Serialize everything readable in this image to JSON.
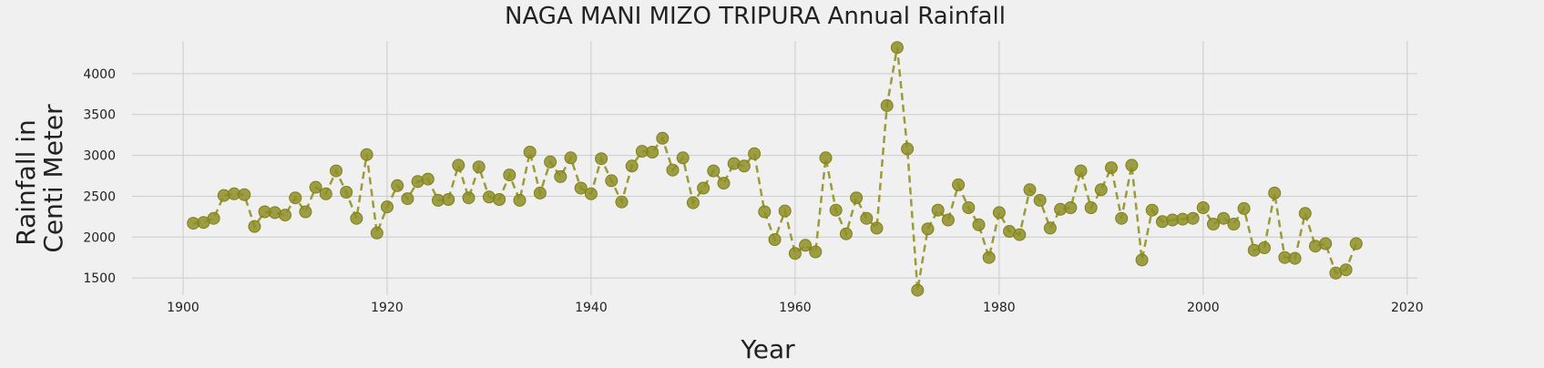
{
  "chart_data": {
    "type": "line",
    "title": "NAGA MANI MIZO TRIPURA Annual Rainfall",
    "xlabel": "Year",
    "ylabel_lines": [
      "Rainfall in",
      "Centi Meter"
    ],
    "xlim": [
      1895,
      2021
    ],
    "ylim": [
      1290,
      4400
    ],
    "x_ticks": [
      1900,
      1920,
      1940,
      1960,
      1980,
      2000,
      2020
    ],
    "y_ticks": [
      1500,
      2000,
      2500,
      3000,
      3500,
      4000
    ],
    "grid": true,
    "series_color": "#8e8e25",
    "x": [
      1901,
      1902,
      1903,
      1904,
      1905,
      1906,
      1907,
      1908,
      1909,
      1910,
      1911,
      1912,
      1913,
      1914,
      1915,
      1916,
      1917,
      1918,
      1919,
      1920,
      1921,
      1922,
      1923,
      1924,
      1925,
      1926,
      1927,
      1928,
      1929,
      1930,
      1931,
      1932,
      1933,
      1934,
      1935,
      1936,
      1937,
      1938,
      1939,
      1940,
      1941,
      1942,
      1943,
      1944,
      1945,
      1946,
      1947,
      1948,
      1949,
      1950,
      1951,
      1952,
      1953,
      1954,
      1955,
      1956,
      1957,
      1958,
      1959,
      1960,
      1961,
      1962,
      1963,
      1964,
      1965,
      1966,
      1967,
      1968,
      1969,
      1970,
      1971,
      1972,
      1973,
      1974,
      1975,
      1976,
      1977,
      1978,
      1979,
      1980,
      1981,
      1982,
      1983,
      1984,
      1985,
      1986,
      1987,
      1988,
      1989,
      1990,
      1991,
      1992,
      1993,
      1994,
      1995,
      1996,
      1997,
      1998,
      1999,
      2000,
      2001,
      2002,
      2003,
      2004,
      2005,
      2006,
      2007,
      2008,
      2009,
      2010,
      2011,
      2012,
      2013,
      2014,
      2015
    ],
    "y": [
      2170,
      2180,
      2230,
      2510,
      2530,
      2520,
      2130,
      2310,
      2300,
      2270,
      2480,
      2310,
      2610,
      2530,
      2810,
      2550,
      2230,
      3010,
      2050,
      2370,
      2630,
      2470,
      2680,
      2710,
      2450,
      2460,
      2880,
      2480,
      2860,
      2490,
      2460,
      2760,
      2450,
      3040,
      2540,
      2920,
      2740,
      2970,
      2600,
      2530,
      2960,
      2690,
      2430,
      2870,
      3050,
      3040,
      3210,
      2820,
      2970,
      2420,
      2600,
      2810,
      2660,
      2900,
      2870,
      3020,
      2310,
      1970,
      2320,
      1800,
      1900,
      1820,
      2970,
      2330,
      2040,
      2480,
      2230,
      2110,
      3610,
      4320,
      3080,
      1350,
      2100,
      2330,
      2210,
      2640,
      2360,
      2150,
      1750,
      2300,
      2070,
      2030,
      2580,
      2450,
      2110,
      2340,
      2360,
      2810,
      2360,
      2580,
      2850,
      2230,
      2880,
      1720,
      2330,
      2190,
      2210,
      2220,
      2230,
      2360,
      2160,
      2230,
      2160,
      2350,
      1840,
      1870,
      2540,
      1750,
      1740,
      2290,
      1890,
      1920,
      1560,
      1600,
      1920
    ]
  }
}
